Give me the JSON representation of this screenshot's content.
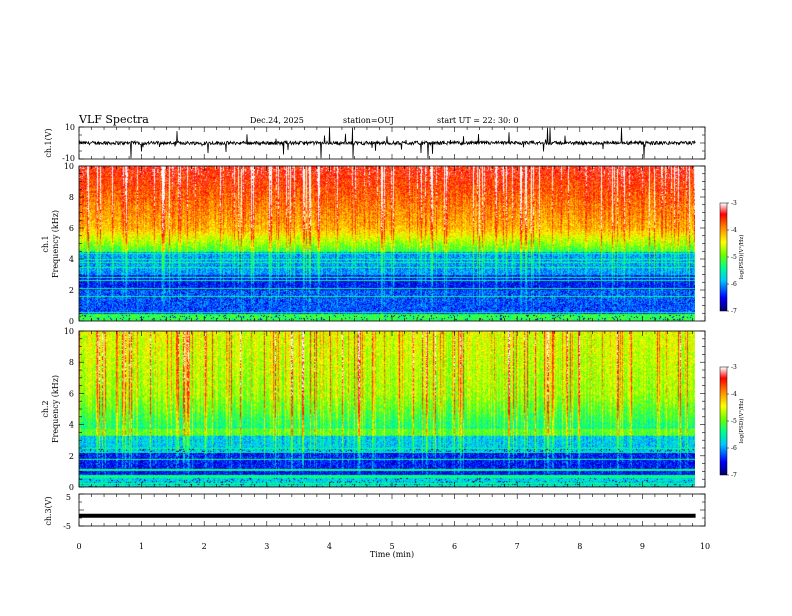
{
  "header": {
    "title": "VLF Spectra",
    "date": "Dec.24, 2025",
    "station": "station=OUJ",
    "start": "start  UT  =   22: 30: 0"
  },
  "chart_data": [
    {
      "type": "line",
      "panel": "ch1-waveform",
      "ylabel": "ch.1(V)",
      "ylim": [
        -10,
        10
      ],
      "y_tick_labels": [
        "10",
        "-10"
      ],
      "baseline": 0,
      "color": "#000000"
    },
    {
      "type": "heatmap",
      "panel": "ch1-spectrogram",
      "ylabel": "ch.1\nFrequency (kHz)",
      "ylabel_line1": "ch.1",
      "ylabel_line2": "Frequency (kHz)",
      "ylim": [
        0,
        10
      ],
      "y_ticks": [
        0,
        2,
        4,
        6,
        8,
        10
      ],
      "y_tick_labels": [
        "0",
        "2",
        "4",
        "6",
        "8",
        "10"
      ],
      "data_xlim_min": [
        0,
        9.85
      ],
      "colorbar": {
        "label": "log(PSD)(V²/Hz)",
        "range": [
          -7,
          -3
        ],
        "tick_labels": [
          "-3",
          "-4",
          "-5",
          "-6",
          "-7"
        ]
      }
    },
    {
      "type": "heatmap",
      "panel": "ch2-spectrogram",
      "ylabel": "ch.2\nFrequency (kHz)",
      "ylabel_line1": "ch.2",
      "ylabel_line2": "Frequency (kHz)",
      "ylim": [
        0,
        10
      ],
      "y_ticks": [
        0,
        2,
        4,
        6,
        8,
        10
      ],
      "y_tick_labels": [
        "0",
        "2",
        "4",
        "6",
        "8",
        "10"
      ],
      "data_xlim_min": [
        0,
        9.85
      ],
      "colorbar": {
        "label": "log(PSD)(V²/Hz)",
        "range": [
          -7,
          -3
        ],
        "tick_labels": [
          "-3",
          "-4",
          "-5",
          "-6",
          "-7"
        ]
      }
    },
    {
      "type": "line",
      "panel": "ch3-waveform",
      "ylabel": "ch.3(V)",
      "ylim": [
        -5,
        5
      ],
      "y_tick_labels": [
        "5",
        "-5"
      ],
      "x": [
        0,
        9.85
      ],
      "y": [
        -1.8,
        -1.8
      ],
      "color": "#000000"
    }
  ],
  "x_axis": {
    "label": "Time (min)",
    "xlim": [
      0,
      10
    ],
    "tick_labels": [
      "0",
      "1",
      "2",
      "3",
      "4",
      "5",
      "6",
      "7",
      "8",
      "9",
      "10"
    ]
  },
  "colors": {
    "colormap": [
      "#000080",
      "#0000ff",
      "#00c8ff",
      "#00ff80",
      "#80ff00",
      "#ffff00",
      "#ff8000",
      "#ff0000",
      "#ffffff"
    ]
  }
}
